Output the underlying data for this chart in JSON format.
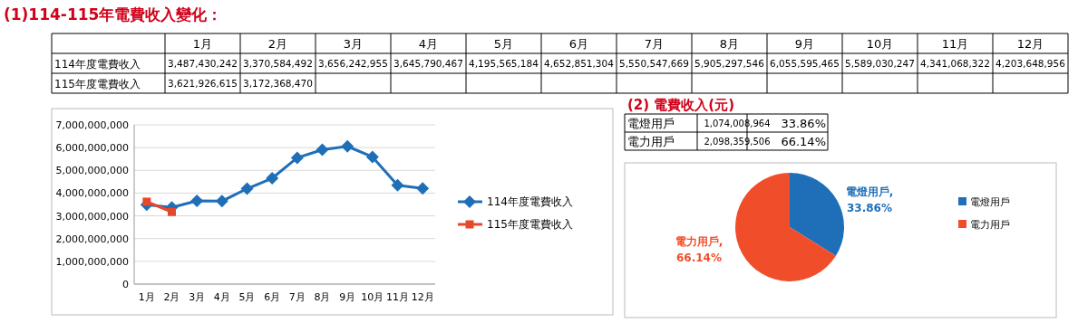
{
  "chart_data": [
    {
      "type": "line",
      "title": "(1)114-115年電費收入變化：",
      "categories": [
        "1月",
        "2月",
        "3月",
        "4月",
        "5月",
        "6月",
        "7月",
        "8月",
        "9月",
        "10月",
        "11月",
        "12月"
      ],
      "series": [
        {
          "name": "114年度電費收入",
          "color": "#1f6fb8",
          "marker": "diamond",
          "values": [
            3487430242,
            3370584492,
            3656242955,
            3645790467,
            4195565184,
            4652851304,
            5550547669,
            5905297546,
            6055595465,
            5589030247,
            4341068322,
            4203648956
          ]
        },
        {
          "name": "115年度電費收入",
          "color": "#e8482a",
          "marker": "square",
          "values": [
            3621926615,
            3172368470,
            null,
            null,
            null,
            null,
            null,
            null,
            null,
            null,
            null,
            null
          ]
        }
      ],
      "annotations": [
        "3,487,430,242",
        "3,370,584,492",
        "3,656,242,955",
        "3,645,790,467",
        "4,195,565,184",
        "4,652,851,304",
        "5,550,547,669",
        "5,905,297,546",
        "6,055,595,465",
        "5,589,030,247",
        "4,341,068,322",
        "4,203,648,956",
        "3,621,926,615",
        "3,172,368,470"
      ],
      "ylim": [
        0,
        7000000000
      ],
      "yticks": [
        {
          "value": 0,
          "label": "0"
        },
        {
          "value": 1000000000,
          "label": "1,000,000,000"
        },
        {
          "value": 2000000000,
          "label": "2,000,000,000"
        },
        {
          "value": 3000000000,
          "label": "3,000,000,000"
        },
        {
          "value": 4000000000,
          "label": "4,000,000,000"
        },
        {
          "value": 5000000000,
          "label": "5,000,000,000"
        },
        {
          "value": 6000000000,
          "label": "6,000,000,000"
        },
        {
          "value": 7000000000,
          "label": "7,000,000,000"
        }
      ],
      "grid": "y",
      "legend": "right"
    },
    {
      "type": "pie",
      "title": "(2) 電費收入(元)",
      "categories": [
        "電燈用戶",
        "電力用戶"
      ],
      "values": [
        33.86,
        66.14
      ],
      "colors": [
        "#1f6fb8",
        "#f04e2a"
      ],
      "value_labels": [
        "電燈用戶, 33.86%",
        "電力用戶, 66.14%"
      ],
      "annotations": [
        "1,074,008,964",
        "33.86%",
        "2,098,359,506",
        "66.14%"
      ],
      "legend": "right"
    }
  ]
}
